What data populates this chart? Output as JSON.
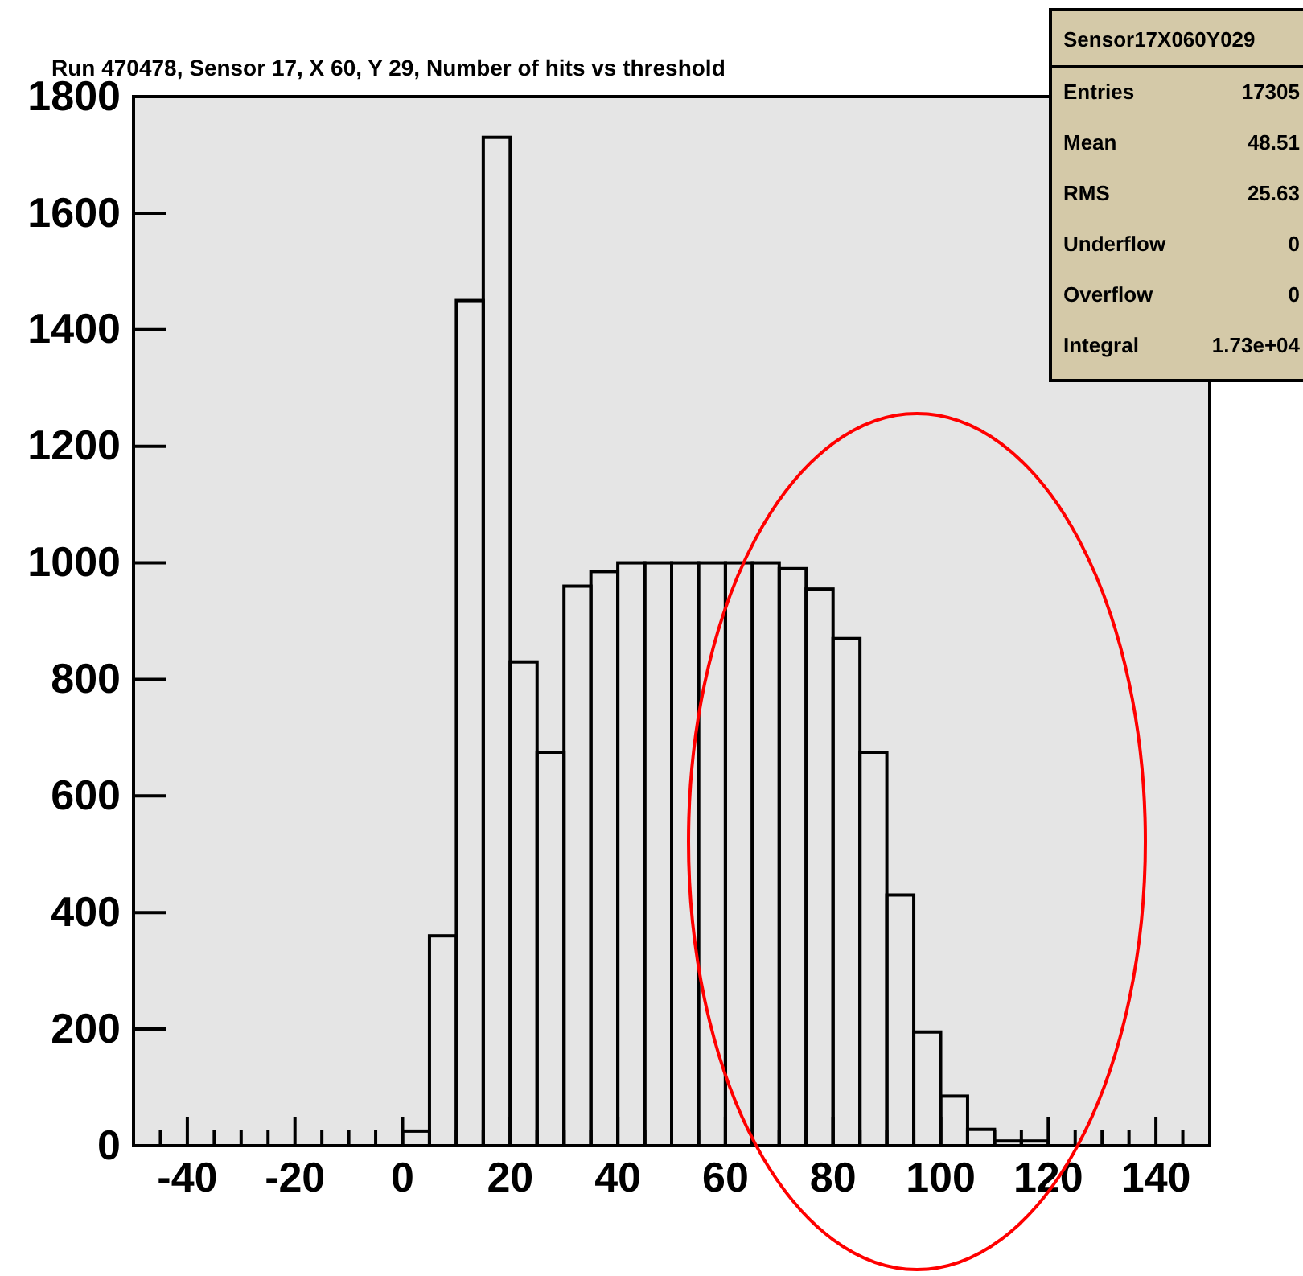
{
  "chart_data": {
    "type": "histogram",
    "title": "Run 470478, Sensor 17, X 60, Y 29, Number of hits vs threshold",
    "bins": [
      0,
      5,
      10,
      15,
      20,
      25,
      30,
      35,
      40,
      45,
      50,
      55,
      60,
      65,
      70,
      75,
      80,
      85,
      90,
      95,
      100,
      105,
      110,
      115,
      120
    ],
    "values": [
      25,
      360,
      1450,
      1730,
      830,
      675,
      960,
      985,
      1000,
      1000,
      1000,
      1000,
      1000,
      1000,
      990,
      955,
      870,
      675,
      430,
      195,
      85,
      28,
      8,
      8
    ],
    "color": "#000000",
    "xlim": [
      -50,
      150
    ],
    "xticks": [
      {
        "value": -45,
        "label": null
      },
      -40,
      {
        "value": -35,
        "label": null
      },
      {
        "value": -30,
        "label": null
      },
      {
        "value": -25,
        "label": null
      },
      -20,
      {
        "value": -15,
        "label": null
      },
      {
        "value": -10,
        "label": null
      },
      {
        "value": -5,
        "label": null
      },
      0,
      {
        "value": 5,
        "label": null
      },
      {
        "value": 10,
        "label": null
      },
      {
        "value": 15,
        "label": null
      },
      20,
      {
        "value": 25,
        "label": null
      },
      {
        "value": 30,
        "label": null
      },
      {
        "value": 35,
        "label": null
      },
      40,
      {
        "value": 45,
        "label": null
      },
      {
        "value": 50,
        "label": null
      },
      {
        "value": 55,
        "label": null
      },
      60,
      {
        "value": 65,
        "label": null
      },
      {
        "value": 70,
        "label": null
      },
      {
        "value": 75,
        "label": null
      },
      80,
      {
        "value": 85,
        "label": null
      },
      {
        "value": 90,
        "label": null
      },
      {
        "value": 95,
        "label": null
      },
      100,
      {
        "value": 105,
        "label": null
      },
      {
        "value": 110,
        "label": null
      },
      {
        "value": 115,
        "label": null
      },
      120,
      {
        "value": 125,
        "label": null
      },
      {
        "value": 130,
        "label": null
      },
      {
        "value": 135,
        "label": null
      },
      140,
      {
        "value": 145,
        "label": null
      }
    ],
    "ylim": [
      0,
      1800
    ],
    "yticks": [
      0,
      200,
      400,
      600,
      800,
      1000,
      1200,
      1400,
      1600,
      1800
    ],
    "grid": false,
    "annotations": [
      "Sensor17X060Y029",
      "Entries",
      "17305",
      "Mean",
      "48.51",
      "RMS",
      "25.63",
      "Underflow",
      "0",
      "Overflow",
      "0",
      "Integral",
      "1.73e+04"
    ]
  }
}
